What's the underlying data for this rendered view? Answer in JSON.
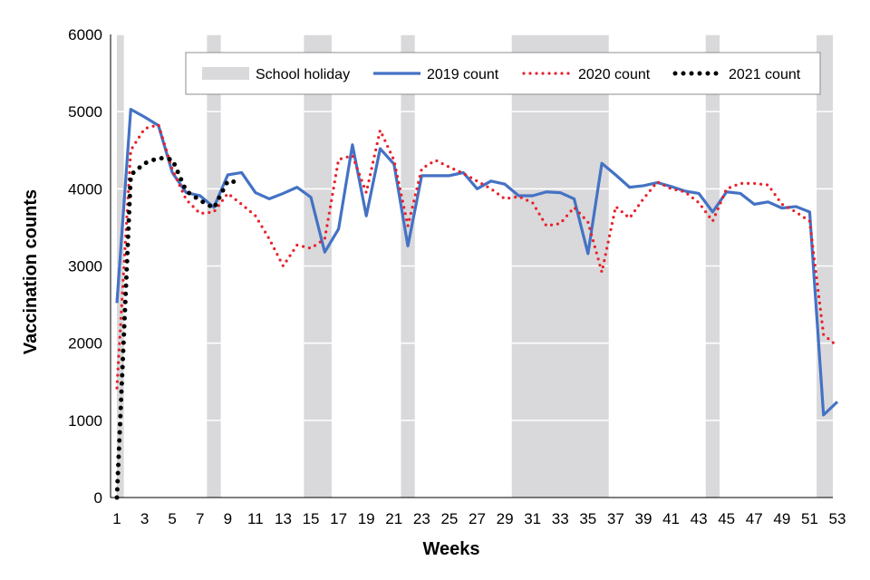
{
  "chart_data": {
    "type": "line",
    "xlabel": "Weeks",
    "ylabel": "Vaccination counts",
    "xlim": [
      1,
      53
    ],
    "ylim": [
      0,
      6000
    ],
    "x_ticks": [
      1,
      3,
      5,
      7,
      9,
      11,
      13,
      15,
      17,
      19,
      21,
      23,
      25,
      27,
      29,
      31,
      33,
      35,
      37,
      39,
      41,
      43,
      45,
      47,
      49,
      51,
      53
    ],
    "y_ticks": [
      0,
      1000,
      2000,
      3000,
      4000,
      5000,
      6000
    ],
    "grid": "horizontal",
    "legend_position": "top",
    "school_holiday": {
      "name": "School holiday",
      "color": "#d9d9db",
      "periods": [
        [
          1,
          1.5
        ],
        [
          7.5,
          8.5
        ],
        [
          14.5,
          16.5
        ],
        [
          21.5,
          22.5
        ],
        [
          29.5,
          36.5
        ],
        [
          43.5,
          44.5
        ],
        [
          51.5,
          53.5
        ]
      ]
    },
    "series": [
      {
        "name": "2019 count",
        "color": "#4472c4",
        "style": "solid",
        "x": [
          1,
          2,
          3,
          4,
          5,
          6,
          7,
          8,
          9,
          10,
          11,
          12,
          13,
          14,
          15,
          16,
          17,
          18,
          19,
          20,
          21,
          22,
          23,
          24,
          25,
          26,
          27,
          28,
          29,
          30,
          31,
          32,
          33,
          34,
          35,
          36,
          37,
          38,
          39,
          40,
          41,
          42,
          43,
          44,
          45,
          46,
          47,
          48,
          49,
          50,
          51,
          52,
          53
        ],
        "values": [
          2520,
          5030,
          4930,
          4820,
          4210,
          3950,
          3910,
          3760,
          4180,
          4210,
          3950,
          3870,
          3940,
          4020,
          3890,
          3180,
          3480,
          4570,
          3650,
          4520,
          4320,
          3260,
          4170,
          4170,
          4170,
          4210,
          4000,
          4100,
          4060,
          3910,
          3910,
          3960,
          3950,
          3870,
          3160,
          4330,
          4180,
          4020,
          4040,
          4080,
          4030,
          3970,
          3940,
          3700,
          3960,
          3940,
          3800,
          3830,
          3750,
          3770,
          3700,
          1070,
          1240
        ]
      },
      {
        "name": "2020 count",
        "color": "#e8212a",
        "style": "dotted",
        "x": [
          1,
          2,
          3,
          4,
          5,
          6,
          7,
          8,
          9,
          10,
          11,
          12,
          13,
          14,
          15,
          16,
          17,
          18,
          19,
          20,
          21,
          22,
          23,
          24,
          25,
          26,
          27,
          28,
          29,
          30,
          31,
          32,
          33,
          34,
          35,
          36,
          37,
          38,
          39,
          40,
          41,
          42,
          43,
          44,
          45,
          46,
          47,
          48,
          49,
          50,
          51,
          52,
          53
        ],
        "values": [
          1420,
          4500,
          4780,
          4830,
          4250,
          3860,
          3680,
          3700,
          3940,
          3800,
          3650,
          3350,
          3000,
          3270,
          3230,
          3350,
          4380,
          4430,
          3950,
          4760,
          4370,
          3520,
          4260,
          4370,
          4280,
          4200,
          4100,
          4000,
          3870,
          3900,
          3820,
          3520,
          3550,
          3760,
          3570,
          2920,
          3770,
          3620,
          3870,
          4090,
          4000,
          3960,
          3820,
          3580,
          4000,
          4070,
          4070,
          4050,
          3800,
          3700,
          3580,
          2110,
          1960
        ]
      },
      {
        "name": "2021 count",
        "color": "#000000",
        "style": "dotted",
        "x": [
          1,
          2,
          3,
          4,
          5,
          6,
          7,
          8,
          9,
          10
        ],
        "values": [
          0,
          4180,
          4330,
          4400,
          4380,
          3970,
          3850,
          3750,
          4100,
          4080
        ]
      }
    ]
  }
}
